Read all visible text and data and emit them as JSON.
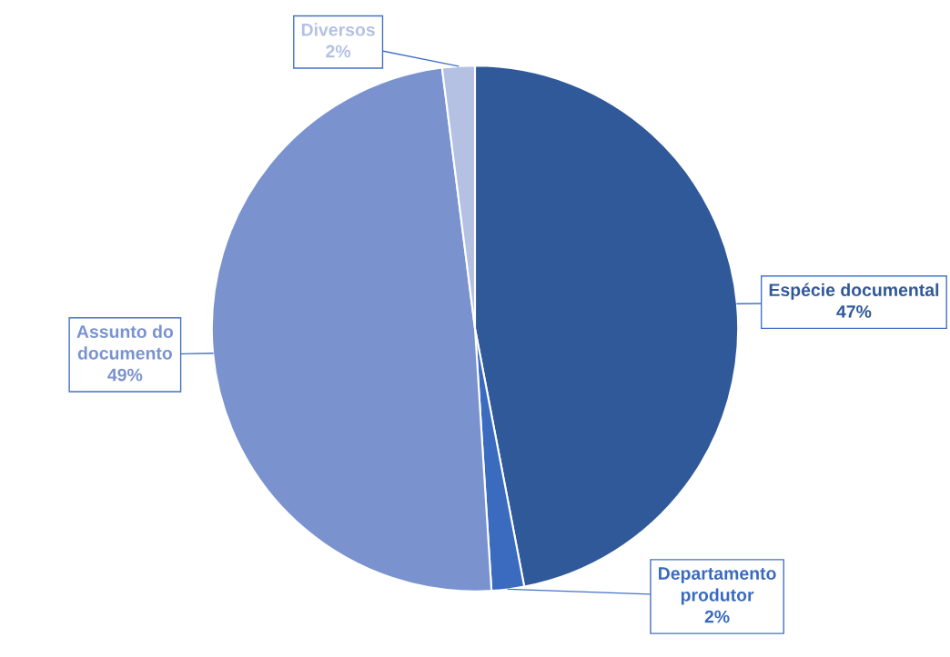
{
  "chart_data": {
    "type": "pie",
    "categories": [
      "Espécie documental",
      "Departamento produtor",
      "Assunto do documento",
      "Diversos"
    ],
    "values": [
      47,
      2,
      49,
      2
    ],
    "colors": [
      "#30599a",
      "#3a6bbf",
      "#7a93cf",
      "#b4c1e3"
    ],
    "value_labels": [
      "47%",
      "2%",
      "49%",
      "2%"
    ]
  }
}
